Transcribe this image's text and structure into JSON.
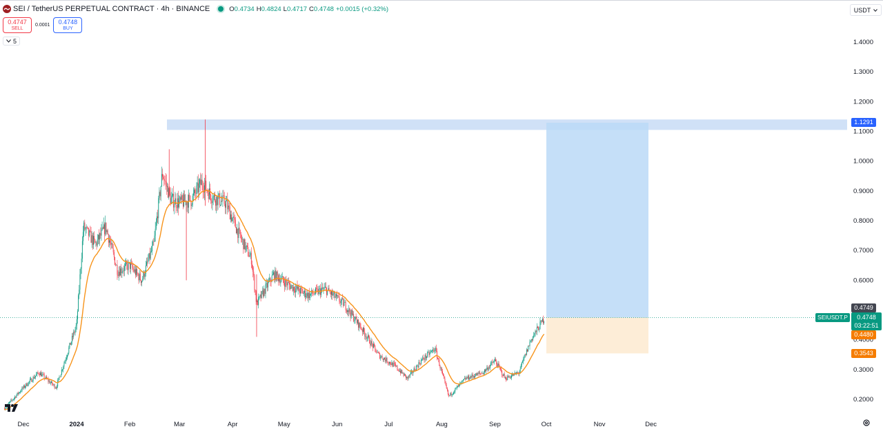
{
  "legend": {
    "title": "SEI / TetherUS PERPETUAL CONTRACT · 4h · BINANCE",
    "open_label": "O",
    "open": "0.4734",
    "high_label": "H",
    "high": "0.4824",
    "low_label": "L",
    "low": "0.4717",
    "close_label": "C",
    "close": "0.4748",
    "change": "+0.0015 (+0.32%)"
  },
  "trade": {
    "sell_price": "0.4747",
    "sell_label": "SELL",
    "spread": "0.0001",
    "buy_price": "0.4748",
    "buy_label": "BUY"
  },
  "indicators_collapsed_count": "5",
  "currency": "USDT",
  "price_axis": {
    "ticks": [
      "1.4000",
      "1.3000",
      "1.2000",
      "1.1000",
      "1.0000",
      "0.9000",
      "0.8000",
      "0.7000",
      "0.6000",
      "0.4000",
      "0.3000",
      "0.2000"
    ],
    "tags": {
      "target": "1.1291",
      "high_marker": "0.4749",
      "symbol": "SEIUSDT.P",
      "last_price": "0.4748",
      "countdown": "03:22:51",
      "entry_low": "0.4480",
      "stop": "0.3543"
    }
  },
  "time_axis": {
    "labels": [
      "Dec",
      "2024",
      "Feb",
      "Mar",
      "Apr",
      "May",
      "Jun",
      "Jul",
      "Aug",
      "Sep",
      "Oct",
      "Nov",
      "Dec"
    ]
  },
  "colors": {
    "up": "#089981",
    "down": "#f23645",
    "ma": "#f7931a",
    "target_zone": "#bbd9f7",
    "stop_zone": "#fdebd3",
    "tag_dark": "#434651",
    "tag_orange": "#f57c00"
  },
  "icons": [
    "tradingview-logo-icon",
    "chevron-down-icon",
    "settings-icon",
    "live-status-icon"
  ],
  "chart_data": {
    "type": "candlestick",
    "interval": "4h",
    "y_range": [
      0.16,
      1.48
    ],
    "x_start": "2023-11-20",
    "x_end": "2024-12-25",
    "approx_close": [
      [
        "2023-11-20",
        0.17
      ],
      [
        "2023-12-01",
        0.24
      ],
      [
        "2023-12-10",
        0.29
      ],
      [
        "2023-12-20",
        0.24
      ],
      [
        "2024-01-01",
        0.45
      ],
      [
        "2024-01-05",
        0.78
      ],
      [
        "2024-01-12",
        0.72
      ],
      [
        "2024-01-18",
        0.78
      ],
      [
        "2024-01-25",
        0.63
      ],
      [
        "2024-02-01",
        0.65
      ],
      [
        "2024-02-08",
        0.6
      ],
      [
        "2024-02-15",
        0.72
      ],
      [
        "2024-02-20",
        0.96
      ],
      [
        "2024-02-25",
        0.87
      ],
      [
        "2024-03-01",
        0.86
      ],
      [
        "2024-03-08",
        0.87
      ],
      [
        "2024-03-14",
        0.93
      ],
      [
        "2024-03-20",
        0.88
      ],
      [
        "2024-03-28",
        0.86
      ],
      [
        "2024-04-05",
        0.75
      ],
      [
        "2024-04-12",
        0.67
      ],
      [
        "2024-04-15",
        0.52
      ],
      [
        "2024-04-25",
        0.62
      ],
      [
        "2024-05-05",
        0.58
      ],
      [
        "2024-05-15",
        0.55
      ],
      [
        "2024-05-25",
        0.57
      ],
      [
        "2024-06-05",
        0.52
      ],
      [
        "2024-06-15",
        0.44
      ],
      [
        "2024-06-25",
        0.35
      ],
      [
        "2024-07-05",
        0.31
      ],
      [
        "2024-07-12",
        0.27
      ],
      [
        "2024-07-20",
        0.33
      ],
      [
        "2024-07-28",
        0.37
      ],
      [
        "2024-08-05",
        0.21
      ],
      [
        "2024-08-15",
        0.27
      ],
      [
        "2024-08-25",
        0.29
      ],
      [
        "2024-09-01",
        0.33
      ],
      [
        "2024-09-07",
        0.27
      ],
      [
        "2024-09-15",
        0.29
      ],
      [
        "2024-09-22",
        0.4
      ],
      [
        "2024-09-30",
        0.4748
      ]
    ]
  },
  "position_tool": {
    "entry": 0.4748,
    "target": 1.1291,
    "stop": 0.3543
  }
}
